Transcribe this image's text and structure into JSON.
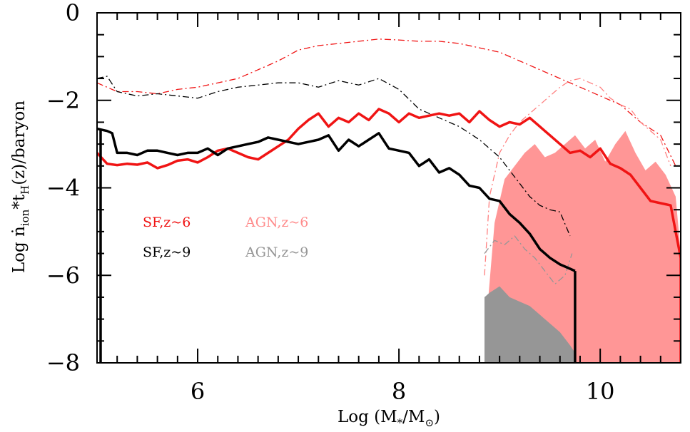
{
  "chart_data": {
    "type": "line",
    "xlabel": {
      "prefix": "Log (M",
      "sub1": "*",
      "mid": "/M",
      "sub2": "⊙",
      "suffix": ")"
    },
    "ylabel": {
      "prefix": "Log ",
      "n": "ṅ",
      "sub1": "ion",
      "mid": "*t",
      "sub2": "H",
      "suffix": "(z)/baryon"
    },
    "xlim": [
      5,
      10.8
    ],
    "ylim": [
      -8,
      0
    ],
    "xticks": [
      6,
      8,
      10
    ],
    "yticks": [
      0,
      -2,
      -4,
      -6,
      -8
    ],
    "xtick_labels": [
      "6",
      "8",
      "10"
    ],
    "ytick_labels": [
      "0",
      "−2",
      "−4",
      "−6",
      "−8"
    ],
    "colors": {
      "red": "#f01414",
      "black": "#000000",
      "pink": "#ff9696",
      "gray": "#969696",
      "pink_line": "#ff8080"
    },
    "legend": {
      "sf6": "SF,z~6",
      "sf9": "SF,z~9",
      "agn6": "AGN,z~6",
      "agn9": "AGN,z~9"
    },
    "series": [
      {
        "name": "SF,z~6",
        "style": "solid",
        "color": "red",
        "x": [
          5.0,
          5.1,
          5.2,
          5.3,
          5.4,
          5.5,
          5.6,
          5.7,
          5.8,
          5.9,
          6.0,
          6.1,
          6.2,
          6.3,
          6.4,
          6.5,
          6.6,
          6.7,
          6.8,
          6.9,
          7.0,
          7.1,
          7.2,
          7.3,
          7.4,
          7.5,
          7.6,
          7.7,
          7.8,
          7.9,
          8.0,
          8.1,
          8.2,
          8.3,
          8.4,
          8.5,
          8.6,
          8.7,
          8.8,
          8.9,
          9.0,
          9.1,
          9.2,
          9.3,
          9.4,
          9.5,
          9.6,
          9.7,
          9.8,
          9.9,
          10.0,
          10.1,
          10.2,
          10.3,
          10.4,
          10.5,
          10.6,
          10.7,
          10.75,
          10.8
        ],
        "y": [
          -3.2,
          -3.45,
          -3.48,
          -3.45,
          -3.47,
          -3.42,
          -3.55,
          -3.48,
          -3.38,
          -3.35,
          -3.42,
          -3.3,
          -3.15,
          -3.1,
          -3.2,
          -3.3,
          -3.35,
          -3.2,
          -3.05,
          -2.9,
          -2.65,
          -2.45,
          -2.3,
          -2.6,
          -2.4,
          -2.5,
          -2.3,
          -2.45,
          -2.2,
          -2.3,
          -2.5,
          -2.3,
          -2.4,
          -2.35,
          -2.3,
          -2.35,
          -2.3,
          -2.5,
          -2.25,
          -2.45,
          -2.6,
          -2.5,
          -2.55,
          -2.4,
          -2.6,
          -2.8,
          -3.0,
          -3.2,
          -3.15,
          -3.3,
          -3.1,
          -3.45,
          -3.55,
          -3.7,
          -4.0,
          -4.3,
          -4.35,
          -4.4,
          -5.0,
          -5.6
        ]
      },
      {
        "name": "SF,z~9",
        "style": "solid",
        "color": "black",
        "x": [
          5.0,
          5.1,
          5.15,
          5.2,
          5.3,
          5.4,
          5.5,
          5.6,
          5.7,
          5.8,
          5.9,
          6.0,
          6.1,
          6.2,
          6.3,
          6.4,
          6.5,
          6.6,
          6.7,
          6.8,
          6.9,
          7.0,
          7.1,
          7.2,
          7.3,
          7.4,
          7.5,
          7.6,
          7.7,
          7.8,
          7.9,
          8.0,
          8.1,
          8.2,
          8.3,
          8.4,
          8.5,
          8.6,
          8.7,
          8.8,
          8.9,
          9.0,
          9.1,
          9.2,
          9.3,
          9.4,
          9.5,
          9.6,
          9.7,
          9.75
        ],
        "y": [
          -2.65,
          -2.7,
          -2.75,
          -3.2,
          -3.2,
          -3.25,
          -3.15,
          -3.15,
          -3.2,
          -3.25,
          -3.2,
          -3.2,
          -3.1,
          -3.25,
          -3.1,
          -3.05,
          -3.0,
          -2.95,
          -2.85,
          -2.9,
          -2.95,
          -3.0,
          -2.95,
          -2.9,
          -2.8,
          -3.15,
          -2.9,
          -3.05,
          -2.9,
          -2.75,
          -3.1,
          -3.15,
          -3.2,
          -3.5,
          -3.35,
          -3.65,
          -3.55,
          -3.7,
          -3.95,
          -4.0,
          -4.25,
          -4.3,
          -4.6,
          -4.8,
          -5.05,
          -5.4,
          -5.6,
          -5.75,
          -5.85,
          -5.9
        ]
      },
      {
        "name": "SF,z~6 (dash-dot)",
        "style": "dashdot",
        "color": "red",
        "x": [
          5.0,
          5.2,
          5.4,
          5.6,
          5.8,
          6.0,
          6.2,
          6.4,
          6.6,
          6.8,
          7.0,
          7.2,
          7.4,
          7.6,
          7.8,
          8.0,
          8.2,
          8.4,
          8.6,
          8.8,
          9.0,
          9.2,
          9.4,
          9.6,
          9.8,
          10.0,
          10.2,
          10.4,
          10.6,
          10.75
        ],
        "y": [
          -1.6,
          -1.8,
          -1.8,
          -1.85,
          -1.75,
          -1.7,
          -1.6,
          -1.5,
          -1.3,
          -1.1,
          -0.85,
          -0.75,
          -0.7,
          -0.65,
          -0.6,
          -0.62,
          -0.65,
          -0.65,
          -0.7,
          -0.8,
          -0.9,
          -1.1,
          -1.3,
          -1.5,
          -1.7,
          -1.9,
          -2.1,
          -2.5,
          -2.8,
          -3.5
        ]
      },
      {
        "name": "SF,z~9 (dash-dot)",
        "style": "dashdot",
        "color": "black",
        "x": [
          5.0,
          5.1,
          5.2,
          5.4,
          5.6,
          5.8,
          6.0,
          6.2,
          6.4,
          6.6,
          6.8,
          7.0,
          7.2,
          7.4,
          7.6,
          7.8,
          8.0,
          8.2,
          8.4,
          8.6,
          8.8,
          9.0,
          9.1,
          9.2,
          9.3,
          9.4,
          9.5,
          9.6,
          9.7
        ],
        "y": [
          -1.5,
          -1.45,
          -1.8,
          -1.9,
          -1.85,
          -1.9,
          -1.95,
          -1.8,
          -1.7,
          -1.65,
          -1.6,
          -1.6,
          -1.7,
          -1.55,
          -1.65,
          -1.5,
          -1.75,
          -2.2,
          -2.4,
          -2.6,
          -2.9,
          -3.3,
          -3.6,
          -3.9,
          -4.2,
          -4.4,
          -4.5,
          -4.55,
          -5.1
        ]
      },
      {
        "name": "AGN,z~6 (dash-dot)",
        "style": "dashdot",
        "color": "pink_line",
        "x": [
          8.85,
          8.9,
          9.0,
          9.1,
          9.2,
          9.3,
          9.4,
          9.5,
          9.6,
          9.7,
          9.8,
          9.9,
          10.0,
          10.1,
          10.2,
          10.3,
          10.4,
          10.5,
          10.6,
          10.7
        ],
        "y": [
          -6.0,
          -4.2,
          -3.2,
          -2.8,
          -2.5,
          -2.3,
          -2.1,
          -1.9,
          -1.7,
          -1.55,
          -1.5,
          -1.6,
          -1.7,
          -1.95,
          -2.1,
          -2.2,
          -2.5,
          -2.7,
          -2.9,
          -3.5
        ]
      },
      {
        "name": "AGN,z~9 (dash-dot)",
        "style": "dashdot",
        "color": "gray",
        "x": [
          8.85,
          8.95,
          9.05,
          9.15,
          9.25,
          9.35,
          9.45,
          9.55,
          9.65,
          9.72
        ],
        "y": [
          -5.5,
          -5.2,
          -5.3,
          -5.1,
          -5.4,
          -5.6,
          -5.9,
          -6.2,
          -6.0,
          -5.5
        ]
      }
    ],
    "areas": [
      {
        "name": "AGN,z~6",
        "color": "pink",
        "x": [
          8.87,
          8.95,
          9.05,
          9.15,
          9.25,
          9.35,
          9.45,
          9.55,
          9.65,
          9.75,
          9.85,
          9.95,
          10.05,
          10.15,
          10.25,
          10.35,
          10.45,
          10.55,
          10.65,
          10.75,
          10.8
        ],
        "y": [
          -7.0,
          -4.8,
          -3.8,
          -3.5,
          -3.2,
          -3.0,
          -3.3,
          -3.2,
          -3.0,
          -2.8,
          -3.1,
          -2.9,
          -3.4,
          -3.0,
          -2.7,
          -3.2,
          -3.6,
          -3.4,
          -3.7,
          -4.2,
          -5.5
        ]
      },
      {
        "name": "AGN,z~9",
        "color": "gray",
        "x": [
          8.85,
          8.9,
          9.0,
          9.1,
          9.2,
          9.3,
          9.4,
          9.5,
          9.6,
          9.7,
          9.76
        ],
        "y": [
          -6.5,
          -6.4,
          -6.25,
          -6.5,
          -6.6,
          -6.7,
          -6.9,
          -7.1,
          -7.3,
          -7.6,
          -7.8
        ]
      }
    ],
    "grid": false
  }
}
